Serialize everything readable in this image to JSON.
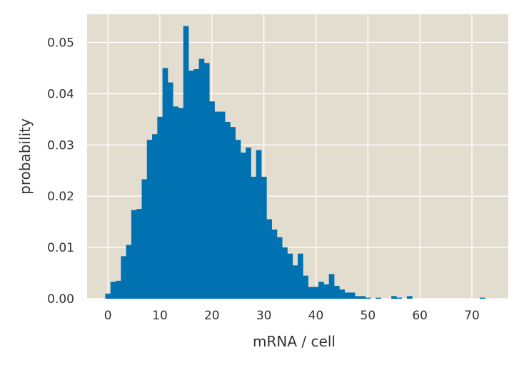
{
  "chart_data": {
    "type": "bar",
    "xlabel": "mRNA / cell",
    "ylabel": "probability",
    "xlim": [
      -4,
      77
    ],
    "ylim": [
      0,
      0.0555
    ],
    "grid": true,
    "bin_width": 1,
    "x_ticks": [
      {
        "value": 0,
        "label": "0"
      },
      {
        "value": 10,
        "label": "10"
      },
      {
        "value": 20,
        "label": "20"
      },
      {
        "value": 30,
        "label": "30"
      },
      {
        "value": 40,
        "label": "40"
      },
      {
        "value": 50,
        "label": "50"
      },
      {
        "value": 60,
        "label": "60"
      },
      {
        "value": 70,
        "label": "70"
      }
    ],
    "y_ticks": [
      {
        "value": 0.0,
        "label": "0.00"
      },
      {
        "value": 0.01,
        "label": "0.01"
      },
      {
        "value": 0.02,
        "label": "0.02"
      },
      {
        "value": 0.03,
        "label": "0.03"
      },
      {
        "value": 0.04,
        "label": "0.04"
      },
      {
        "value": 0.05,
        "label": "0.05"
      }
    ],
    "x": [
      0,
      1,
      2,
      3,
      4,
      5,
      6,
      7,
      8,
      9,
      10,
      11,
      12,
      13,
      14,
      15,
      16,
      17,
      18,
      19,
      20,
      21,
      22,
      23,
      24,
      25,
      26,
      27,
      28,
      29,
      30,
      31,
      32,
      33,
      34,
      35,
      36,
      37,
      38,
      39,
      40,
      41,
      42,
      43,
      44,
      45,
      46,
      47,
      48,
      49,
      50,
      51,
      52,
      53,
      54,
      55,
      56,
      57,
      58,
      59,
      60,
      61,
      62,
      63,
      64,
      65,
      66,
      67,
      68,
      69,
      70,
      71,
      72,
      73,
      74
    ],
    "values": [
      0.001,
      0.0033,
      0.0035,
      0.0083,
      0.0105,
      0.0173,
      0.0175,
      0.0233,
      0.031,
      0.0321,
      0.0355,
      0.045,
      0.0422,
      0.0375,
      0.0372,
      0.0532,
      0.0445,
      0.0448,
      0.0468,
      0.046,
      0.0385,
      0.0365,
      0.0365,
      0.0345,
      0.0335,
      0.031,
      0.0285,
      0.0295,
      0.0238,
      0.029,
      0.0238,
      0.0155,
      0.0135,
      0.012,
      0.01,
      0.0088,
      0.0065,
      0.0088,
      0.0045,
      0.0023,
      0.0023,
      0.0033,
      0.0028,
      0.0048,
      0.0025,
      0.0018,
      0.0012,
      0.0012,
      0.0005,
      0.0005,
      0.0002,
      0.0,
      0.0002,
      0.0,
      0.0,
      0.0005,
      0.0002,
      0.0,
      0.0005,
      0.0,
      0.0,
      0.0,
      0.0,
      0.0,
      0.0,
      0.0,
      0.0,
      0.0,
      0.0,
      0.0,
      0.0,
      0.0,
      0.0002,
      0.0,
      0.0
    ],
    "colors": {
      "bar": "#0072b2",
      "background": "#e3ddd0",
      "grid": "#ffffff",
      "text": "#333333"
    }
  }
}
